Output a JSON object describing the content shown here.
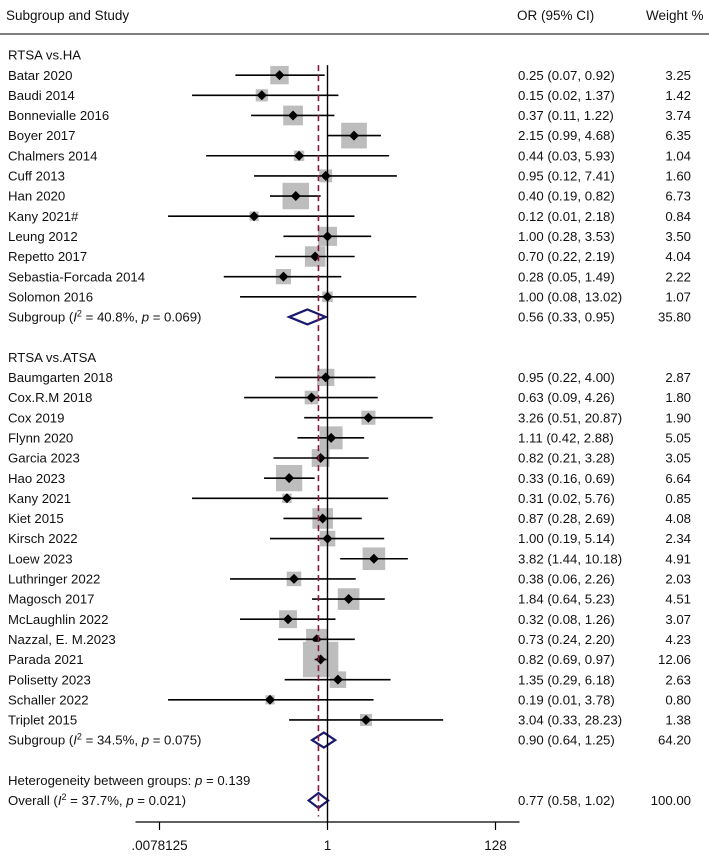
{
  "chart_data": {
    "type": "forest",
    "headers": {
      "study": "Subgroup and Study",
      "or": "OR (95% CI)",
      "weight": "Weight %"
    },
    "x_axis": {
      "scale": "log2",
      "range_log2": [
        -8,
        8
      ],
      "ticks": [
        {
          "label": ".0078125",
          "log2": -7
        },
        {
          "label": "1",
          "log2": 0
        },
        {
          "label": "128",
          "log2": 7
        }
      ]
    },
    "overall_effect": 0.77,
    "groups": [
      {
        "label": "RTSA vs.HA",
        "studies": [
          {
            "name": "Batar 2020",
            "or": 0.25,
            "lo": 0.07,
            "hi": 0.92,
            "or_text": "0.25 (0.07, 0.92)",
            "weight": "3.25"
          },
          {
            "name": "Baudi 2014",
            "or": 0.15,
            "lo": 0.02,
            "hi": 1.37,
            "or_text": "0.15 (0.02, 1.37)",
            "weight": "1.42"
          },
          {
            "name": "Bonnevialle 2016",
            "or": 0.37,
            "lo": 0.11,
            "hi": 1.22,
            "or_text": "0.37 (0.11, 1.22)",
            "weight": "3.74"
          },
          {
            "name": "Boyer 2017",
            "or": 2.15,
            "lo": 0.99,
            "hi": 4.68,
            "or_text": "2.15 (0.99, 4.68)",
            "weight": "6.35"
          },
          {
            "name": "Chalmers 2014",
            "or": 0.44,
            "lo": 0.03,
            "hi": 5.93,
            "or_text": "0.44 (0.03, 5.93)",
            "weight": "1.04"
          },
          {
            "name": "Cuff 2013",
            "or": 0.95,
            "lo": 0.12,
            "hi": 7.41,
            "or_text": "0.95 (0.12, 7.41)",
            "weight": "1.60"
          },
          {
            "name": "Han 2020",
            "or": 0.4,
            "lo": 0.19,
            "hi": 0.82,
            "or_text": "0.40 (0.19, 0.82)",
            "weight": "6.73"
          },
          {
            "name": "Kany 2021#",
            "or": 0.12,
            "lo": 0.01,
            "hi": 2.18,
            "or_text": "0.12 (0.01, 2.18)",
            "weight": "0.84"
          },
          {
            "name": "Leung 2012",
            "or": 1.0,
            "lo": 0.28,
            "hi": 3.53,
            "or_text": "1.00 (0.28, 3.53)",
            "weight": "3.50"
          },
          {
            "name": "Repetto 2017",
            "or": 0.7,
            "lo": 0.22,
            "hi": 2.19,
            "or_text": "0.70 (0.22, 2.19)",
            "weight": "4.04"
          },
          {
            "name": "Sebastia-Forcada 2014",
            "or": 0.28,
            "lo": 0.05,
            "hi": 1.49,
            "or_text": "0.28 (0.05, 1.49)",
            "weight": "2.22"
          },
          {
            "name": "Solomon 2016",
            "or": 1.0,
            "lo": 0.08,
            "hi": 13.02,
            "or_text": "1.00 (0.08, 13.02)",
            "weight": "1.07"
          }
        ],
        "subtotal": {
          "label_pre": "Subgroup (",
          "i2_sym": "I",
          "i2_sup": "2",
          "label_post": " = 40.8%, ",
          "p_sym": "p",
          "p_val": " = 0.069)",
          "or": 0.56,
          "lo": 0.33,
          "hi": 0.95,
          "or_text": "0.56 (0.33, 0.95)",
          "weight": "35.80"
        }
      },
      {
        "label": "RTSA vs.ATSA",
        "studies": [
          {
            "name": "Baumgarten 2018",
            "or": 0.95,
            "lo": 0.22,
            "hi": 4.0,
            "or_text": "0.95 (0.22, 4.00)",
            "weight": "2.87"
          },
          {
            "name": "Cox.R.M 2018",
            "or": 0.63,
            "lo": 0.09,
            "hi": 4.26,
            "or_text": "0.63 (0.09, 4.26)",
            "weight": "1.80"
          },
          {
            "name": "Cox 2019",
            "or": 3.26,
            "lo": 0.51,
            "hi": 20.87,
            "or_text": "3.26 (0.51, 20.87)",
            "weight": "1.90"
          },
          {
            "name": "Flynn 2020",
            "or": 1.11,
            "lo": 0.42,
            "hi": 2.88,
            "or_text": "1.11 (0.42, 2.88)",
            "weight": "5.05"
          },
          {
            "name": "Garcia 2023",
            "or": 0.82,
            "lo": 0.21,
            "hi": 3.28,
            "or_text": "0.82 (0.21, 3.28)",
            "weight": "3.05"
          },
          {
            "name": "Hao 2023",
            "or": 0.33,
            "lo": 0.16,
            "hi": 0.69,
            "or_text": "0.33 (0.16, 0.69)",
            "weight": "6.64"
          },
          {
            "name": "Kany 2021",
            "or": 0.31,
            "lo": 0.02,
            "hi": 5.76,
            "or_text": "0.31 (0.02, 5.76)",
            "weight": "0.85"
          },
          {
            "name": "Kiet 2015",
            "or": 0.87,
            "lo": 0.28,
            "hi": 2.69,
            "or_text": "0.87 (0.28, 2.69)",
            "weight": "4.08"
          },
          {
            "name": "Kirsch 2022",
            "or": 1.0,
            "lo": 0.19,
            "hi": 5.14,
            "or_text": "1.00 (0.19, 5.14)",
            "weight": "2.34"
          },
          {
            "name": "Loew 2023",
            "or": 3.82,
            "lo": 1.44,
            "hi": 10.18,
            "or_text": "3.82 (1.44, 10.18)",
            "weight": "4.91"
          },
          {
            "name": "Luthringer 2022",
            "or": 0.38,
            "lo": 0.06,
            "hi": 2.26,
            "or_text": "0.38 (0.06, 2.26)",
            "weight": "2.03"
          },
          {
            "name": "Magosch 2017",
            "or": 1.84,
            "lo": 0.64,
            "hi": 5.23,
            "or_text": "1.84 (0.64, 5.23)",
            "weight": "4.51"
          },
          {
            "name": "McLaughlin 2022",
            "or": 0.32,
            "lo": 0.08,
            "hi": 1.26,
            "or_text": "0.32 (0.08, 1.26)",
            "weight": "3.07"
          },
          {
            "name": "Nazzal, E. M.2023",
            "or": 0.73,
            "lo": 0.24,
            "hi": 2.2,
            "or_text": "0.73 (0.24, 2.20)",
            "weight": "4.23"
          },
          {
            "name": "Parada 2021",
            "or": 0.82,
            "lo": 0.69,
            "hi": 0.97,
            "or_text": "0.82 (0.69, 0.97)",
            "weight": "12.06"
          },
          {
            "name": "Polisetty 2023",
            "or": 1.35,
            "lo": 0.29,
            "hi": 6.18,
            "or_text": "1.35 (0.29, 6.18)",
            "weight": "2.63"
          },
          {
            "name": "Schaller 2022",
            "or": 0.19,
            "lo": 0.01,
            "hi": 3.78,
            "or_text": "0.19 (0.01, 3.78)",
            "weight": "0.80"
          },
          {
            "name": "Triplet 2015",
            "or": 3.04,
            "lo": 0.33,
            "hi": 28.23,
            "or_text": "3.04 (0.33, 28.23)",
            "weight": "1.38"
          }
        ],
        "subtotal": {
          "label_pre": "Subgroup (",
          "i2_sym": "I",
          "i2_sup": "2",
          "label_post": " = 34.5%, ",
          "p_sym": "p",
          "p_val": " = 0.075)",
          "or": 0.9,
          "lo": 0.64,
          "hi": 1.25,
          "or_text": "0.90 (0.64, 1.25)",
          "weight": "64.20"
        }
      }
    ],
    "heterogeneity": {
      "label_pre": "Heterogeneity between groups: ",
      "p_sym": "p",
      "p_val": " = 0.139"
    },
    "overall": {
      "label_pre": "Overall (",
      "i2_sym": "I",
      "i2_sup": "2",
      "label_post": " = 37.7%, ",
      "p_sym": "p",
      "p_val": " = 0.021)",
      "or": 0.77,
      "lo": 0.58,
      "hi": 1.02,
      "or_text": "0.77 (0.58, 1.02)",
      "weight": "100.00"
    },
    "colors": {
      "box": "#bdbdbd",
      "diamond": "#1a1a6e",
      "ref_line": "#8b1a3a",
      "line": "#000000"
    }
  }
}
